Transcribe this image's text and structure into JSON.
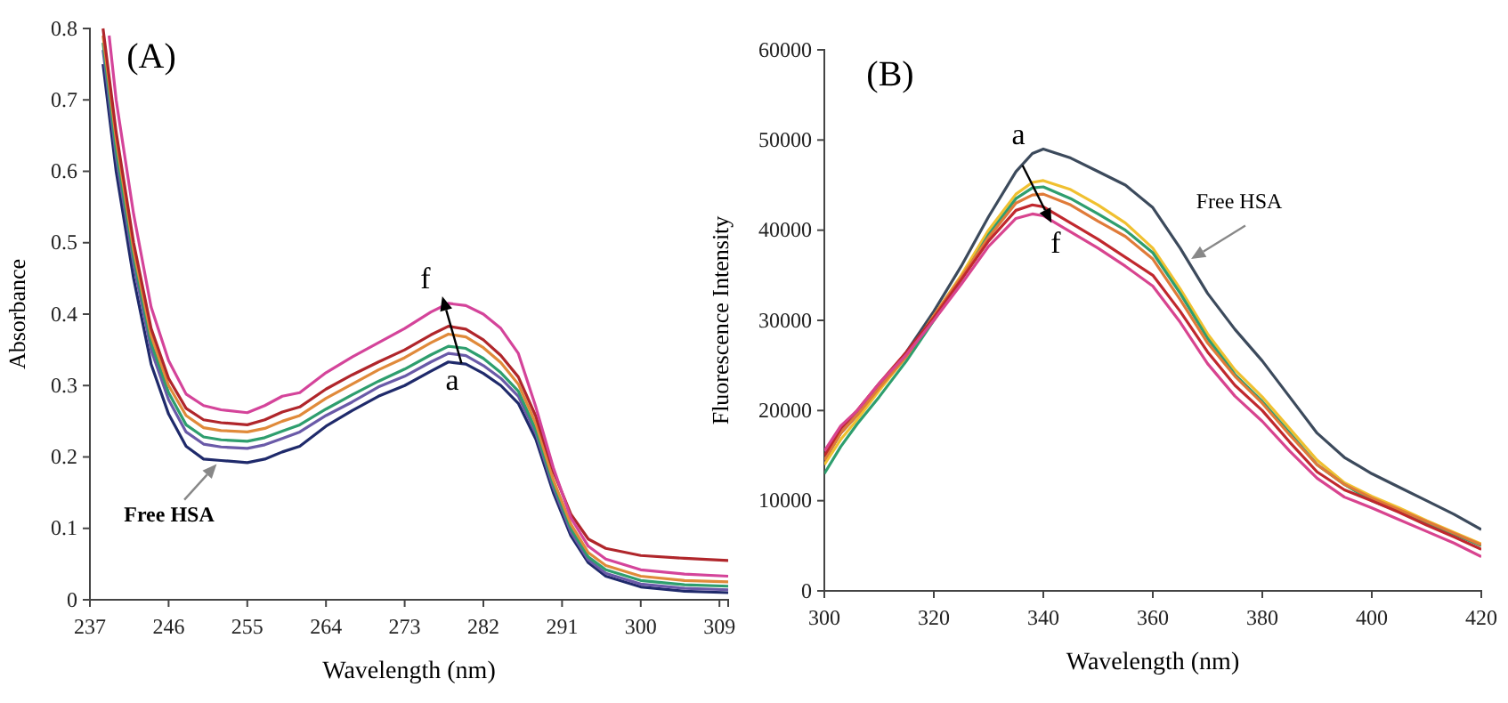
{
  "chart_data": [
    {
      "type": "line",
      "xlabel": "Wavelength (nm)",
      "ylabel": "Absorbance",
      "xlim": [
        237,
        310
      ],
      "xticks": [
        237,
        246,
        255,
        264,
        273,
        282,
        291,
        300,
        309
      ],
      "ylim": [
        0,
        0.8
      ],
      "yticks": [
        0,
        0.1,
        0.2,
        0.3,
        0.4,
        0.5,
        0.6,
        0.7,
        0.8
      ],
      "line_style": "solid",
      "x": [
        238.5,
        240,
        242,
        244,
        246,
        248,
        250,
        252,
        255,
        257,
        259,
        261,
        264,
        267,
        270,
        273,
        276,
        278,
        280,
        282,
        284,
        286,
        288,
        290,
        292,
        294,
        296,
        300,
        305,
        310
      ],
      "series": [
        {
          "color": "#1f2a6b",
          "values": [
            0.75,
            0.6,
            0.45,
            0.33,
            0.26,
            0.215,
            0.197,
            0.195,
            0.192,
            0.197,
            0.207,
            0.215,
            0.243,
            0.265,
            0.285,
            0.3,
            0.32,
            0.333,
            0.33,
            0.317,
            0.3,
            0.275,
            0.225,
            0.15,
            0.09,
            0.052,
            0.033,
            0.018,
            0.012,
            0.01
          ]
        },
        {
          "color": "#6a5aa8",
          "values": [
            0.77,
            0.62,
            0.47,
            0.35,
            0.28,
            0.235,
            0.218,
            0.214,
            0.212,
            0.217,
            0.226,
            0.235,
            0.258,
            0.277,
            0.298,
            0.313,
            0.333,
            0.345,
            0.342,
            0.328,
            0.31,
            0.285,
            0.233,
            0.157,
            0.095,
            0.056,
            0.037,
            0.022,
            0.016,
            0.014
          ]
        },
        {
          "color": "#2e9e6e",
          "values": [
            0.78,
            0.63,
            0.48,
            0.36,
            0.29,
            0.245,
            0.228,
            0.224,
            0.222,
            0.227,
            0.236,
            0.245,
            0.267,
            0.287,
            0.306,
            0.323,
            0.343,
            0.355,
            0.352,
            0.338,
            0.318,
            0.292,
            0.238,
            0.162,
            0.1,
            0.06,
            0.042,
            0.027,
            0.021,
            0.019
          ]
        },
        {
          "color": "#e08a3a",
          "values": [
            0.79,
            0.645,
            0.49,
            0.37,
            0.3,
            0.258,
            0.241,
            0.237,
            0.235,
            0.24,
            0.25,
            0.258,
            0.282,
            0.302,
            0.322,
            0.339,
            0.36,
            0.372,
            0.368,
            0.353,
            0.332,
            0.302,
            0.247,
            0.168,
            0.106,
            0.066,
            0.048,
            0.033,
            0.027,
            0.025
          ]
        },
        {
          "color": "#b0262b",
          "values": [
            0.8,
            0.655,
            0.5,
            0.38,
            0.31,
            0.268,
            0.252,
            0.248,
            0.245,
            0.252,
            0.263,
            0.27,
            0.295,
            0.315,
            0.333,
            0.35,
            0.371,
            0.383,
            0.379,
            0.364,
            0.342,
            0.312,
            0.257,
            0.18,
            0.12,
            0.085,
            0.072,
            0.062,
            0.058,
            0.055
          ]
        },
        {
          "color": "#d4449a",
          "x": [
            239.2,
            240,
            242,
            244,
            246,
            248,
            250,
            252,
            255,
            257,
            259,
            261,
            264,
            267,
            270,
            273,
            276,
            278,
            280,
            282,
            284,
            286,
            288,
            290,
            292,
            294,
            296,
            300,
            305,
            310
          ],
          "values": [
            0.79,
            0.7,
            0.54,
            0.41,
            0.335,
            0.288,
            0.272,
            0.266,
            0.262,
            0.272,
            0.285,
            0.29,
            0.318,
            0.34,
            0.36,
            0.38,
            0.403,
            0.415,
            0.412,
            0.4,
            0.38,
            0.345,
            0.27,
            0.185,
            0.115,
            0.075,
            0.057,
            0.042,
            0.036,
            0.033
          ]
        }
      ],
      "annotations": [
        "(A)",
        "f",
        {
          "text": "a",
          "x": 279.5,
          "y": 0.331
        },
        "Free HSA"
      ]
    },
    {
      "type": "line",
      "xlabel": "Wavelength (nm)",
      "ylabel": "Fluorescence  Intensity",
      "xlim": [
        300,
        420
      ],
      "xticks": [
        300,
        320,
        340,
        360,
        380,
        400,
        420
      ],
      "ylim": [
        0,
        60000
      ],
      "yticks": [
        0,
        10000,
        20000,
        30000,
        40000,
        50000,
        60000
      ],
      "line_style": "solid",
      "x": [
        300,
        303,
        306,
        310,
        315,
        320,
        325,
        330,
        335,
        338,
        340,
        345,
        350,
        355,
        360,
        365,
        370,
        375,
        380,
        385,
        390,
        395,
        400,
        405,
        410,
        415,
        420
      ],
      "series": [
        {
          "color": "#3c4a5c",
          "values": [
            14500,
            17500,
            19500,
            22500,
            26500,
            31000,
            36000,
            41500,
            46500,
            48500,
            49000,
            48000,
            46500,
            45000,
            42500,
            38000,
            33000,
            29000,
            25500,
            21500,
            17500,
            14800,
            13000,
            11500,
            10000,
            8500,
            6800
          ]
        },
        {
          "color": "#f0c030",
          "values": [
            14000,
            16800,
            19000,
            22200,
            26000,
            30500,
            35000,
            40000,
            44000,
            45300,
            45500,
            44500,
            42800,
            40800,
            38000,
            33500,
            28500,
            24500,
            21500,
            18000,
            14500,
            12000,
            10500,
            9200,
            7800,
            6500,
            5200
          ]
        },
        {
          "color": "#2e9e6e",
          "values": [
            13000,
            16000,
            18500,
            21500,
            25500,
            30000,
            34500,
            39500,
            43500,
            44700,
            44800,
            43500,
            41800,
            40000,
            37500,
            33000,
            28000,
            24000,
            21000,
            17500,
            14000,
            11800,
            10000,
            8800,
            7500,
            6300,
            5000
          ]
        },
        {
          "color": "#e07b39",
          "values": [
            14500,
            17500,
            19500,
            22500,
            26000,
            30500,
            34800,
            39200,
            43000,
            43900,
            44000,
            42800,
            41000,
            39300,
            36800,
            32300,
            27500,
            23800,
            20800,
            17300,
            14000,
            11800,
            10300,
            9000,
            7700,
            6400,
            5100
          ]
        },
        {
          "color": "#c0282e",
          "values": [
            15000,
            18000,
            20000,
            23000,
            26500,
            30300,
            34500,
            38800,
            42200,
            42800,
            42600,
            40800,
            39000,
            37000,
            35000,
            31000,
            26500,
            22800,
            20000,
            16500,
            13200,
            11200,
            10000,
            8700,
            7300,
            6000,
            4600
          ]
        },
        {
          "color": "#d8448f",
          "values": [
            15500,
            18300,
            20000,
            23000,
            26200,
            30000,
            34000,
            38200,
            41300,
            41800,
            41600,
            39800,
            38000,
            36000,
            33800,
            29800,
            25200,
            21600,
            18800,
            15500,
            12500,
            10400,
            9200,
            7900,
            6600,
            5300,
            3800
          ]
        }
      ],
      "annotations": [
        "(B)",
        {
          "text": "a",
          "x": 336.2,
          "y": 47200
        },
        "f",
        "Free HSA"
      ]
    }
  ]
}
